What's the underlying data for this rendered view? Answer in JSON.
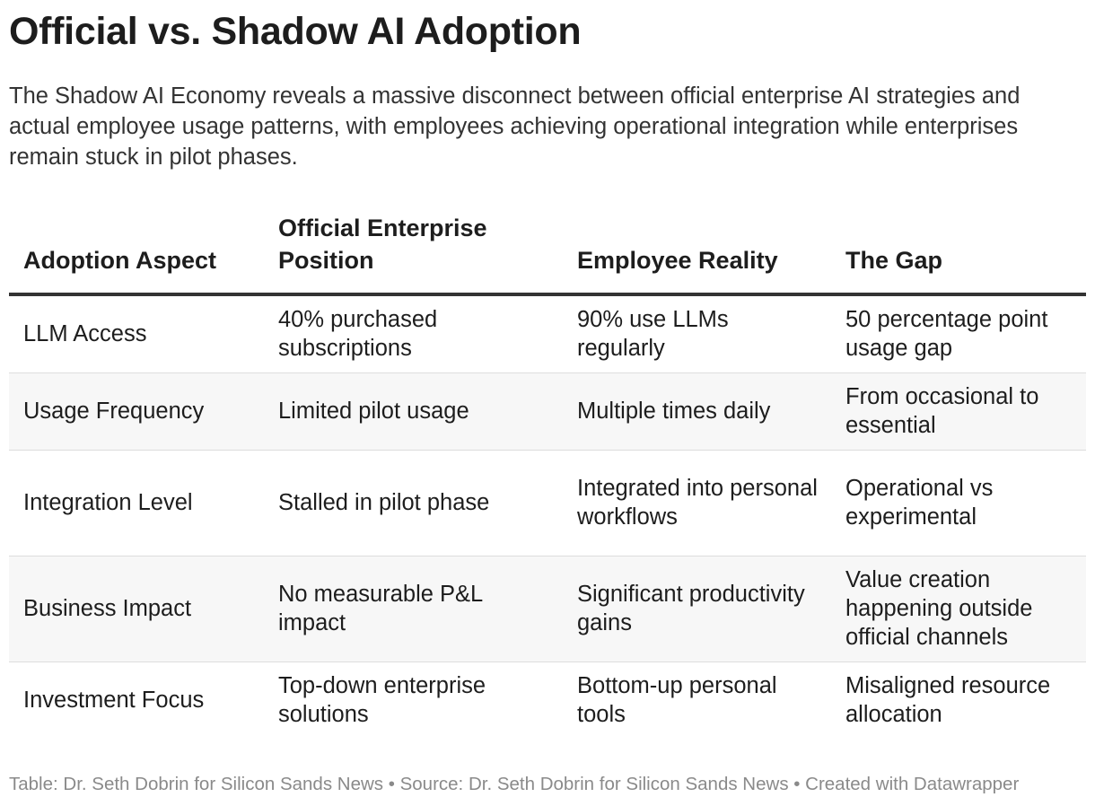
{
  "title": "Official vs. Shadow AI Adoption",
  "description": "The Shadow AI Economy reveals a massive disconnect between official enterprise AI strategies and actual employee usage patterns, with employees achieving operational integration while enterprises remain stuck in pilot phases.",
  "chart_data": {
    "type": "table",
    "columns": [
      "Adoption Aspect",
      "Official Enterprise Position",
      "Employee Reality",
      "The Gap"
    ],
    "rows": [
      [
        "LLM Access",
        "40% purchased subscriptions",
        "90% use LLMs regularly",
        "50 percentage point usage gap"
      ],
      [
        "Usage Frequency",
        "Limited pilot usage",
        "Multiple times daily",
        "From occasional to essential"
      ],
      [
        "Integration Level",
        "Stalled in pilot phase",
        "Integrated into personal workflows",
        "Operational vs experimental"
      ],
      [
        "Business Impact",
        "No measurable P&L impact",
        "Significant productivity gains",
        "Value creation happening outside official channels"
      ],
      [
        "Investment Focus",
        "Top-down enterprise solutions",
        "Bottom-up personal tools",
        "Misaligned resource allocation"
      ]
    ]
  },
  "footer": {
    "text": "Table: Dr. Seth Dobrin for Silicon Sands News • Source: Dr. Seth Dobrin for Silicon Sands News • Created with Datawrapper"
  },
  "colors": {
    "header_rule": "#333333",
    "row_stripe": "#f7f7f7",
    "row_divider": "#dddddd",
    "footer_text": "#8a8a8a"
  }
}
